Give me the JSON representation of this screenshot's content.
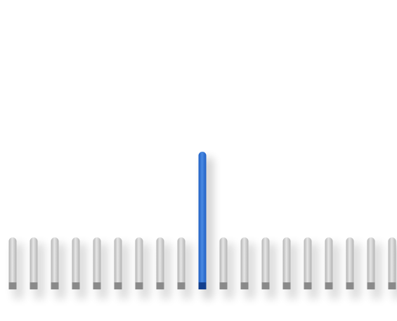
{
  "bars": {
    "count": 19,
    "active_index": 9,
    "active_level": 1.0,
    "inactive_level": 0.38
  },
  "colors": {
    "background": "#ffffff",
    "inactive_bar_light": "#e6e6e6",
    "inactive_bar_dark": "#b4b4b4",
    "inactive_base": "#8a8a8a",
    "active_bar_light": "#4a8ae2",
    "active_bar_dark": "#1f5fc4",
    "active_base": "#123f8e",
    "shadow": "#000000"
  }
}
